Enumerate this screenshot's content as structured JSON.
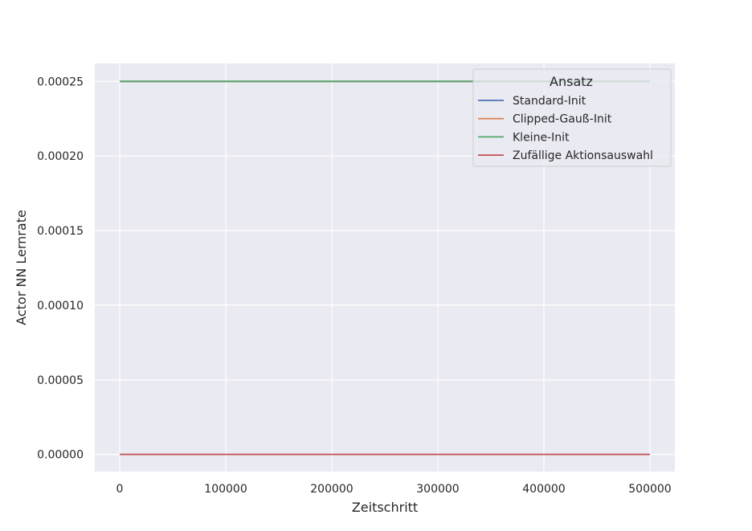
{
  "chart_data": {
    "type": "line",
    "xlabel": "Zeitschritt",
    "ylabel": "Actor NN Lernrate",
    "xlim": [
      -23500,
      523500
    ],
    "ylim": [
      -1.15e-05,
      0.000262
    ],
    "xticks": [
      0,
      100000,
      200000,
      300000,
      400000,
      500000
    ],
    "xtick_labels": [
      "0",
      "100000",
      "200000",
      "300000",
      "400000",
      "500000"
    ],
    "yticks": [
      0,
      5e-05,
      0.0001,
      0.00015,
      0.0002,
      0.00025
    ],
    "ytick_labels": [
      "0.00000",
      "0.00005",
      "0.00010",
      "0.00015",
      "0.00020",
      "0.00025"
    ],
    "grid": true,
    "legend": {
      "title": "Ansatz",
      "placement": "top-right"
    },
    "series": [
      {
        "name": "Standard-Init",
        "color": "#4c72b0",
        "x": [
          0,
          500000
        ],
        "y": [
          0.00025,
          0.00025
        ]
      },
      {
        "name": "Clipped-Gauß-Init",
        "color": "#dd8452",
        "x": [
          0,
          500000
        ],
        "y": [
          0.00025,
          0.00025
        ]
      },
      {
        "name": "Kleine-Init",
        "color": "#55a868",
        "x": [
          0,
          500000
        ],
        "y": [
          0.00025,
          0.00025
        ]
      },
      {
        "name": "Zufällige Aktionsauswahl",
        "color": "#c44e52",
        "x": [
          0,
          500000
        ],
        "y": [
          0,
          0
        ]
      }
    ],
    "colors": {
      "plot_background": "#eaeaf2",
      "grid": "#ffffff",
      "text": "#262626"
    }
  }
}
